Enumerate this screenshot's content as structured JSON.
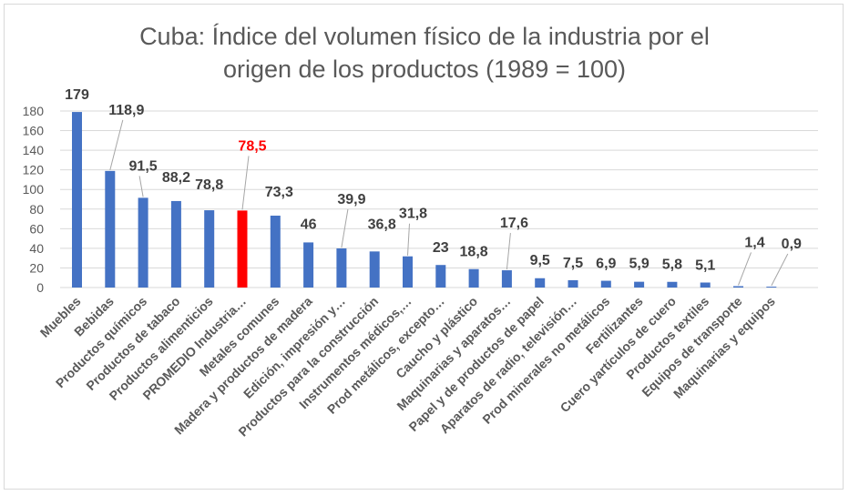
{
  "chart_data": {
    "type": "bar",
    "title_lines": [
      "Cuba: Índice del volumen físico de la industria por el",
      "origen de los productos (1989 = 100)"
    ],
    "categories": [
      "Muebles",
      "Bebidas",
      "Productos químicos",
      "Productos de tabaco",
      "Productos alimenticios",
      "PROMEDIO Industria…",
      "Metales comunes",
      "Madera y productos de madera",
      "Edición, impresión y…",
      "Productos para la construcción",
      "Instrumentos médicos,…",
      "Prod metálicos, excepto…",
      "Caucho y plástico",
      "Maquinarias y aparatos…",
      "Papel y de productos de papel",
      "Aparatos de radio, televisión…",
      "Prod minerales no metálicos",
      "Fertilizantes",
      "Cuero yartículos de cuero",
      "Productos textiles",
      "Equipos de transporte",
      "Maquinarias y equipos"
    ],
    "values": [
      179,
      118.9,
      91.5,
      88.2,
      78.8,
      78.5,
      73.3,
      46,
      39.9,
      36.8,
      31.8,
      23,
      18.8,
      17.6,
      9.5,
      7.5,
      6.9,
      5.9,
      5.8,
      5.1,
      1.4,
      0.9
    ],
    "data_labels": [
      "179",
      "118,9",
      "91,5",
      "88,2",
      "78,8",
      "78,5",
      "73,3",
      "46",
      "39,9",
      "36,8",
      "31,8",
      "23",
      "18,8",
      "17,6",
      "9,5",
      "7,5",
      "6,9",
      "5,9",
      "5,8",
      "5,1",
      "1,4",
      "0,9"
    ],
    "highlight_index": 5,
    "ylim": [
      0,
      180
    ],
    "yticks": [
      "0",
      "20",
      "40",
      "60",
      "80",
      "100",
      "120",
      "140",
      "160",
      "180"
    ],
    "grid": true,
    "legend": "none",
    "colors": {
      "bar": "#4472c4",
      "highlight": "#ff0000",
      "grid": "#d9d9d9",
      "label": "#404040",
      "highlight_label": "#ff0000"
    }
  }
}
